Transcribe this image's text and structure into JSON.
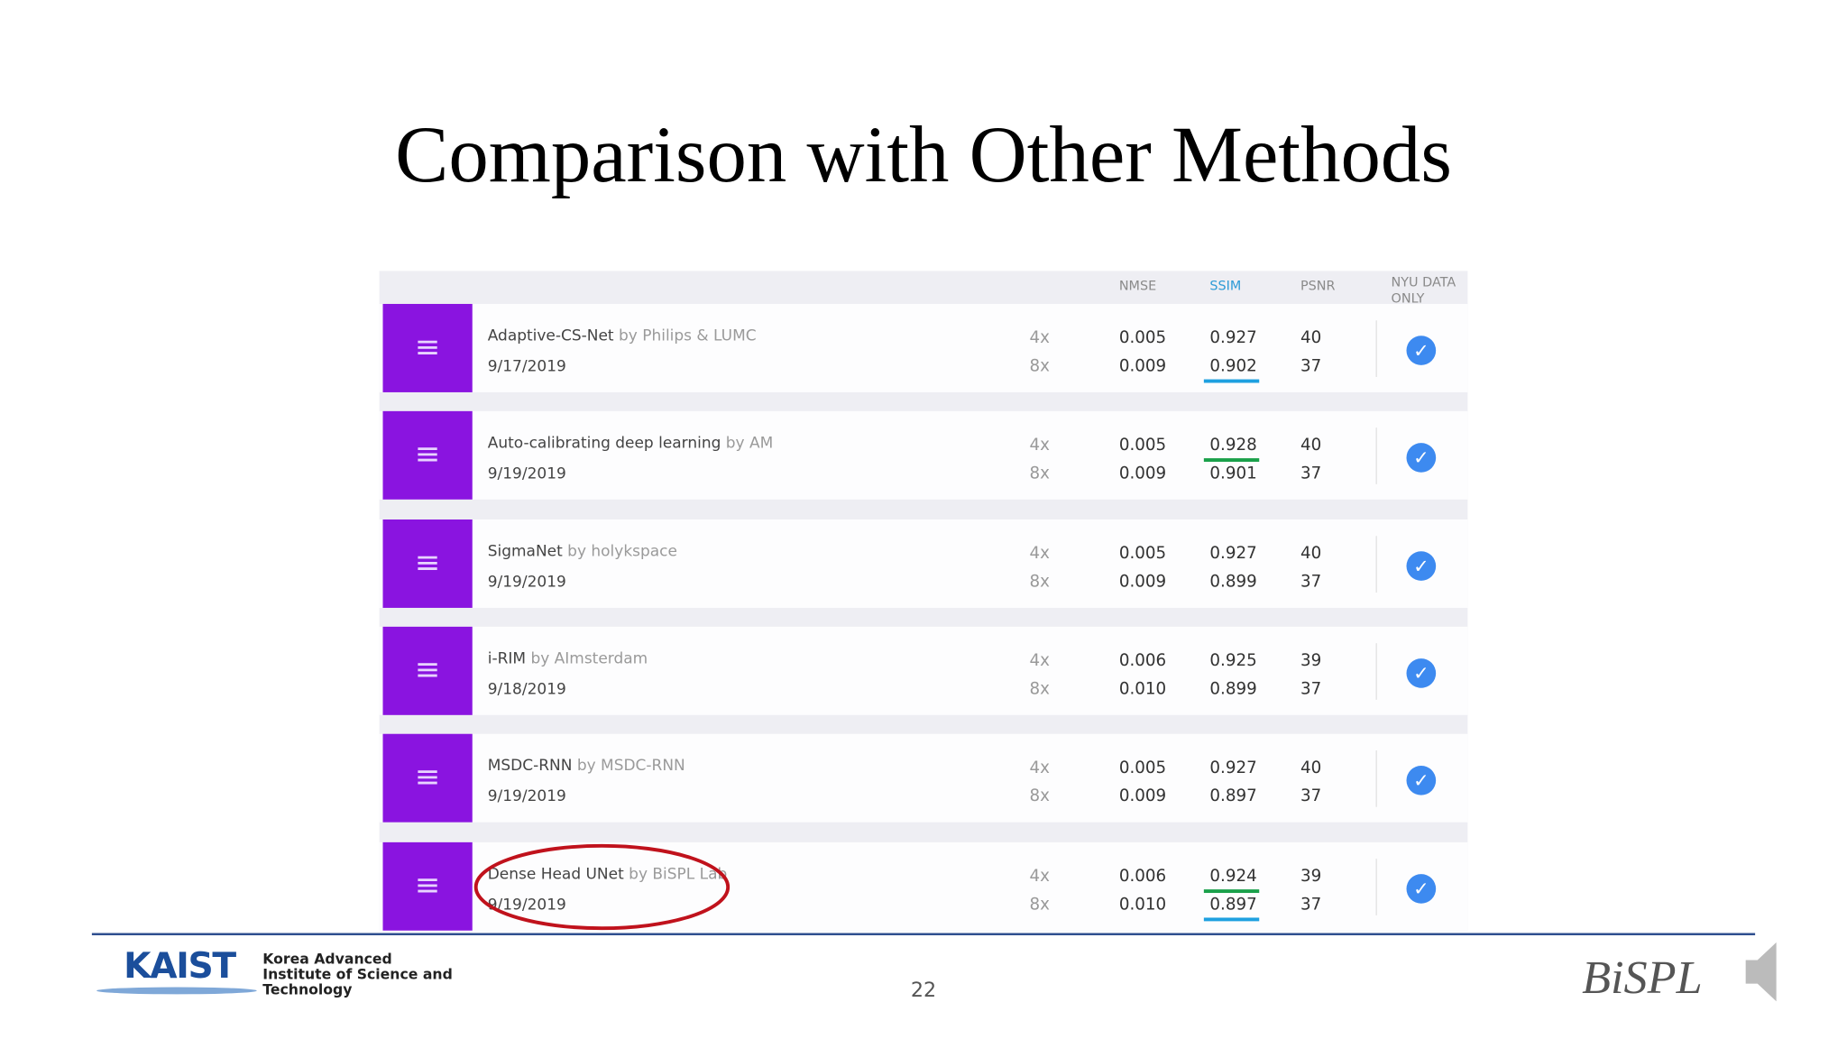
{
  "title": "Comparison with Other Methods",
  "table": {
    "headers": [
      "NMSE",
      "SSIM",
      "PSNR",
      "NYU DATA ONLY"
    ],
    "rows": [
      {
        "name": "Adaptive-CS-Net",
        "by": "by Philips & LUMC",
        "date": "9/17/2019",
        "accel": [
          "4x",
          "8x"
        ],
        "nmse": [
          "0.005",
          "0.009"
        ],
        "ssim": [
          "0.927",
          "0.902"
        ],
        "psnr": [
          "40",
          "37"
        ]
      },
      {
        "name": "Auto-calibrating deep learning",
        "by": "by AM",
        "date": "9/19/2019",
        "accel": [
          "4x",
          "8x"
        ],
        "nmse": [
          "0.005",
          "0.009"
        ],
        "ssim": [
          "0.928",
          "0.901"
        ],
        "psnr": [
          "40",
          "37"
        ]
      },
      {
        "name": "SigmaNet",
        "by": "by holykspace",
        "date": "9/19/2019",
        "accel": [
          "4x",
          "8x"
        ],
        "nmse": [
          "0.005",
          "0.009"
        ],
        "ssim": [
          "0.927",
          "0.899"
        ],
        "psnr": [
          "40",
          "37"
        ]
      },
      {
        "name": "i-RIM",
        "by": "by AImsterdam",
        "date": "9/18/2019",
        "accel": [
          "4x",
          "8x"
        ],
        "nmse": [
          "0.006",
          "0.010"
        ],
        "ssim": [
          "0.925",
          "0.899"
        ],
        "psnr": [
          "39",
          "37"
        ]
      },
      {
        "name": "MSDC-RNN",
        "by": "by MSDC-RNN",
        "date": "9/19/2019",
        "accel": [
          "4x",
          "8x"
        ],
        "nmse": [
          "0.005",
          "0.009"
        ],
        "ssim": [
          "0.927",
          "0.897"
        ],
        "psnr": [
          "40",
          "37"
        ]
      },
      {
        "name": "Dense Head UNet",
        "by": "by BiSPL Lab",
        "date": "9/19/2019",
        "accel": [
          "4x",
          "8x"
        ],
        "nmse": [
          "0.006",
          "0.010"
        ],
        "ssim": [
          "0.924",
          "0.897"
        ],
        "psnr": [
          "39",
          "37"
        ]
      }
    ]
  },
  "footer": {
    "logo": "KAIST",
    "institute": "Korea Advanced Institute of Science and Technology",
    "page": "22",
    "lab": "BiSPL"
  }
}
